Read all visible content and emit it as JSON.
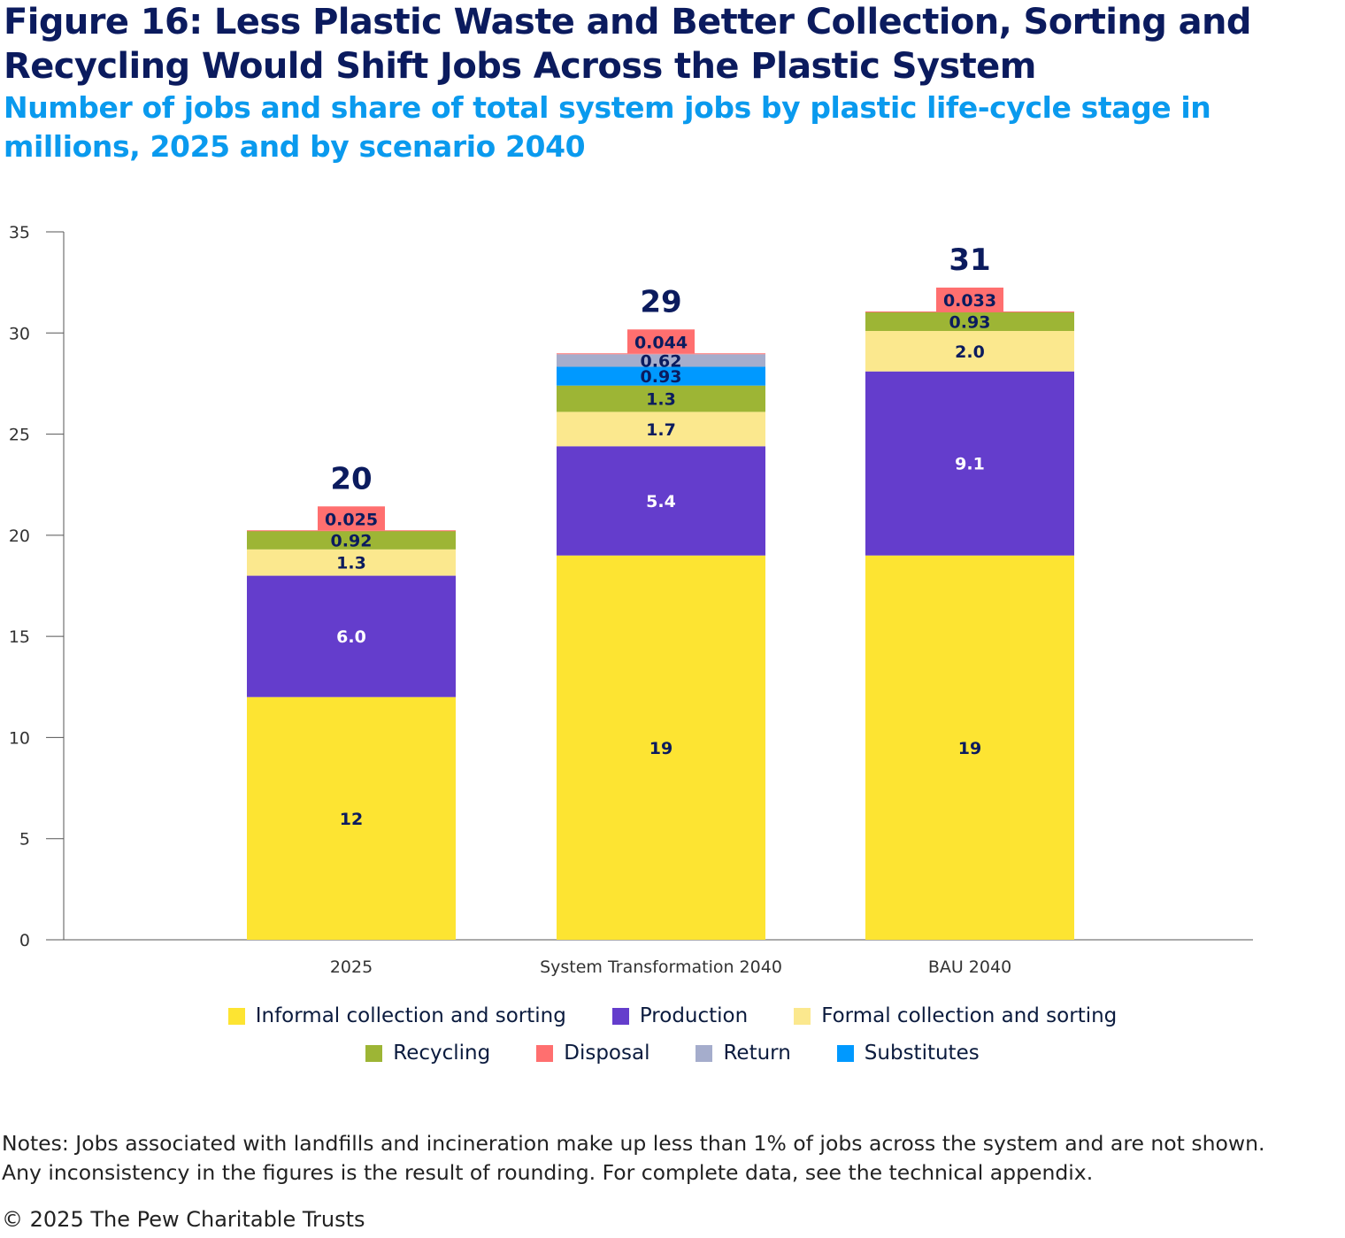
{
  "chart_data": {
    "type": "bar",
    "stacked": true,
    "title": "Figure 16: Less Plastic Waste and Better Collection, Sorting and Recycling Would Shift Jobs Across the Plastic System",
    "subtitle": "Number of jobs and share of total system jobs by plastic life-cycle stage in millions, 2025 and by scenario 2040",
    "xlabel": "",
    "ylabel": "",
    "ylim": [
      0,
      35
    ],
    "yticks": [
      0,
      5,
      10,
      15,
      20,
      25,
      30,
      35
    ],
    "grid": false,
    "legend_position": "bottom",
    "categories": [
      "2025",
      "System Transformation 2040",
      "BAU 2040"
    ],
    "totals": [
      "20",
      "29",
      "31"
    ],
    "series": [
      {
        "name": "Informal collection and sorting",
        "color": "#FDE432",
        "label_color": "#0b1b5e",
        "values": [
          12,
          19,
          19
        ],
        "labels": [
          "12",
          "19",
          "19"
        ]
      },
      {
        "name": "Production",
        "color": "#643DCC",
        "label_color": "#ffffff",
        "values": [
          6.0,
          5.4,
          9.1
        ],
        "labels": [
          "6.0",
          "5.4",
          "9.1"
        ]
      },
      {
        "name": "Formal collection and sorting",
        "color": "#FBE88E",
        "label_color": "#0b1b5e",
        "values": [
          1.3,
          1.7,
          2.0
        ],
        "labels": [
          "1.3",
          "1.7",
          "2.0"
        ]
      },
      {
        "name": "Recycling",
        "color": "#9DB535",
        "label_color": "#0b1b5e",
        "values": [
          0.92,
          1.3,
          0.93
        ],
        "labels": [
          "0.92",
          "1.3",
          "0.93"
        ]
      },
      {
        "name": "Substitutes",
        "color": "#0099FF",
        "label_color": "#0b1b5e",
        "values": [
          0,
          0.93,
          0
        ],
        "labels": [
          "",
          "0.93",
          ""
        ]
      },
      {
        "name": "Return",
        "color": "#A5ADCC",
        "label_color": "#0b1b5e",
        "values": [
          0,
          0.62,
          0
        ],
        "labels": [
          "",
          "0.62",
          ""
        ]
      },
      {
        "name": "Disposal",
        "color": "#FF6F6F",
        "label_color": "#0b1b5e",
        "values": [
          0.025,
          0.044,
          0.033
        ],
        "labels": [
          "0.025",
          "0.044",
          "0.033"
        ]
      }
    ],
    "legend_order": [
      "Informal collection and sorting",
      "Production",
      "Formal collection and sorting",
      "Recycling",
      "Disposal",
      "Return",
      "Substitutes"
    ]
  },
  "notes": "Notes: Jobs associated with landfills and incineration make up less than 1% of jobs across the system and are not shown. Any inconsistency in the figures is the result of rounding. For complete data, see the technical appendix.",
  "notes_line1": "Notes: Jobs associated with landfills and incineration make up less than 1% of jobs across the system and are not shown.",
  "notes_line2": "Any inconsistency in the figures is the result of rounding. For complete data, see the technical appendix.",
  "copyright": "© 2025 The Pew Charitable Trusts"
}
